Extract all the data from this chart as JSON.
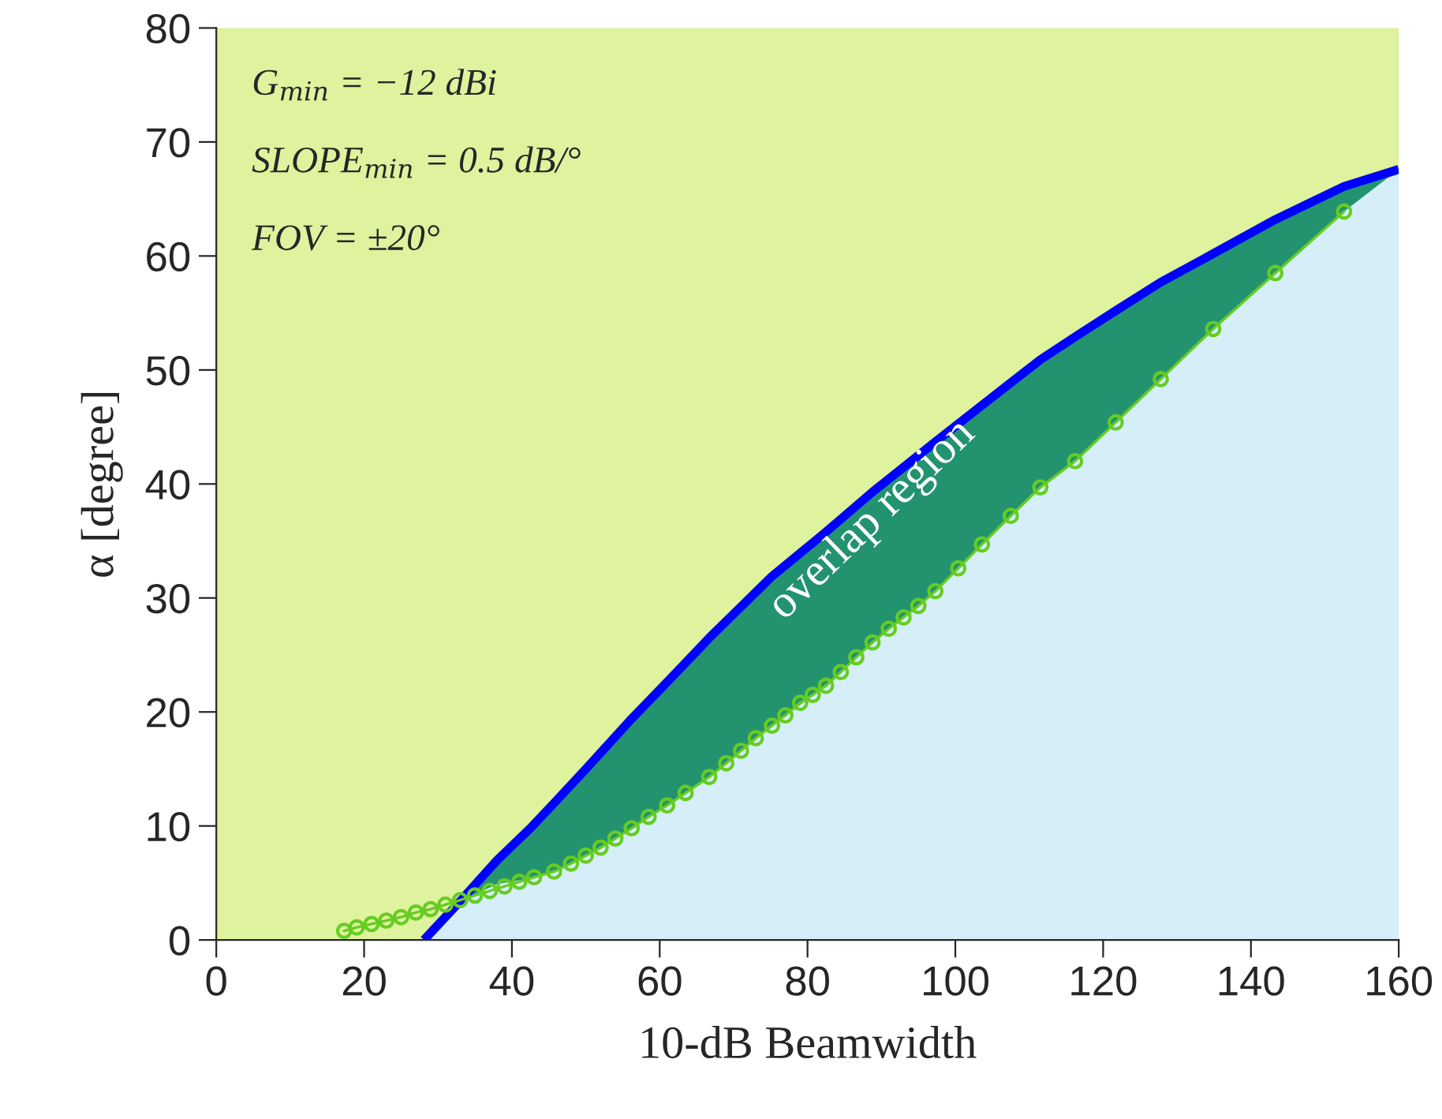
{
  "chart_data": {
    "type": "line",
    "xlabel": "10-dB Beamwidth",
    "ylabel": "α [degree]",
    "xlim": [
      0,
      160
    ],
    "ylim": [
      0,
      80
    ],
    "xticks": [
      0,
      20,
      40,
      60,
      80,
      100,
      120,
      140,
      160
    ],
    "yticks": [
      0,
      10,
      20,
      30,
      40,
      50,
      60,
      70,
      80
    ],
    "grid": false,
    "legend": false,
    "series": [
      {
        "type": "line",
        "color": "#0000ff",
        "x": [
          28.1,
          33,
          38,
          42.5,
          45.7,
          50,
          56.2,
          62,
          66.7,
          75.2,
          82.5,
          88.8,
          97.3,
          103.6,
          111.5,
          116.2,
          121.7,
          127.8,
          134.9,
          143.3,
          152.6,
          160
        ],
        "values": [
          0,
          3.4,
          7.0,
          9.8,
          12.0,
          15.0,
          19.4,
          23.3,
          26.5,
          31.9,
          35.8,
          39.3,
          43.7,
          46.9,
          50.9,
          52.9,
          55.2,
          57.7,
          60.2,
          63.2,
          66.1,
          67.6
        ],
        "lower": [
          null,
          3.4,
          4.9,
          5.4,
          6.0,
          7.4,
          9.8,
          12.2,
          14.3,
          18.8,
          22.3,
          26.1,
          30.6,
          34.7,
          39.7,
          42.0,
          45.4,
          49.2,
          53.6,
          58.5,
          63.9,
          67.6
        ],
        "upper": [
          null,
          3.4,
          7.0,
          9.8,
          12.0,
          15.0,
          19.4,
          23.3,
          26.5,
          31.9,
          35.8,
          39.3,
          43.7,
          46.9,
          50.9,
          52.9,
          55.2,
          57.7,
          60.2,
          63.2,
          66.1,
          67.6
        ]
      },
      {
        "type": "line",
        "color": "#66cc22",
        "marker": "circle",
        "x": [
          17.3,
          19,
          21,
          23,
          25,
          27,
          29,
          31,
          33,
          35,
          37,
          39,
          41,
          43,
          45.7,
          48,
          50,
          52,
          54,
          56.2,
          58.5,
          61,
          63.5,
          66.7,
          69,
          71,
          73,
          75.2,
          77,
          79,
          80.7,
          82.5,
          84.5,
          86.6,
          88.8,
          91,
          93,
          95,
          97.3,
          100.4,
          103.6,
          107.5,
          111.5,
          116.2,
          121.7,
          127.8,
          134.9,
          143.3,
          152.6
        ],
        "values": [
          0.8,
          1.1,
          1.4,
          1.7,
          2.0,
          2.4,
          2.7,
          3.1,
          3.5,
          3.9,
          4.3,
          4.7,
          5.1,
          5.5,
          6.0,
          6.7,
          7.4,
          8.1,
          8.9,
          9.8,
          10.8,
          11.8,
          12.9,
          14.3,
          15.5,
          16.6,
          17.7,
          18.8,
          19.7,
          20.8,
          21.5,
          22.3,
          23.5,
          24.8,
          26.1,
          27.3,
          28.3,
          29.3,
          30.6,
          32.6,
          34.7,
          37.2,
          39.7,
          42.0,
          45.4,
          49.2,
          53.6,
          58.5,
          63.9
        ]
      }
    ],
    "annotations": [
      "G$_{min}$ = −12 dBi",
      "SLOPE$_{min}$ = 0.5 dB/°",
      "FOV = ±20°",
      "overlap region"
    ]
  }
}
